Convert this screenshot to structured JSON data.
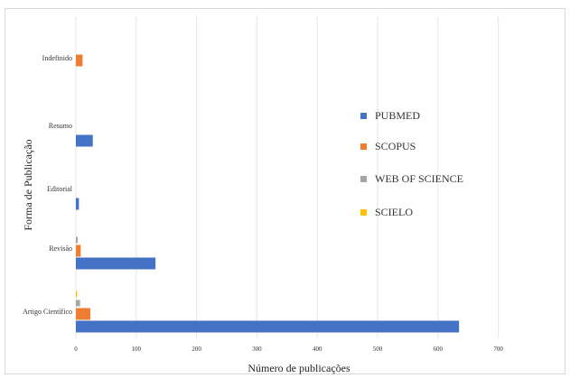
{
  "chart_data": {
    "type": "bar",
    "orientation": "horizontal",
    "categories": [
      "Artigo Científico",
      "Revisão",
      "Editorial",
      "Resumo",
      "Indefinido"
    ],
    "series": [
      {
        "name": "PUBMED",
        "color": "#4472C4",
        "values": [
          635,
          132,
          5,
          28,
          0
        ]
      },
      {
        "name": "SCOPUS",
        "color": "#ED7D31",
        "values": [
          24,
          8,
          0,
          0,
          11
        ]
      },
      {
        "name": "WEB OF SCIENCE",
        "color": "#A5A5A5",
        "values": [
          7,
          3,
          0,
          0,
          0
        ]
      },
      {
        "name": "SCIELO",
        "color": "#FFC000",
        "values": [
          2,
          0,
          0,
          0,
          0
        ]
      }
    ],
    "xlabel": "Número de publicações",
    "ylabel": "Forma de Publicação",
    "xlim": [
      0,
      700
    ],
    "xticks": [
      0,
      100,
      200,
      300,
      400,
      500,
      600,
      700
    ],
    "grid": "vertical",
    "legend_position": "right"
  }
}
